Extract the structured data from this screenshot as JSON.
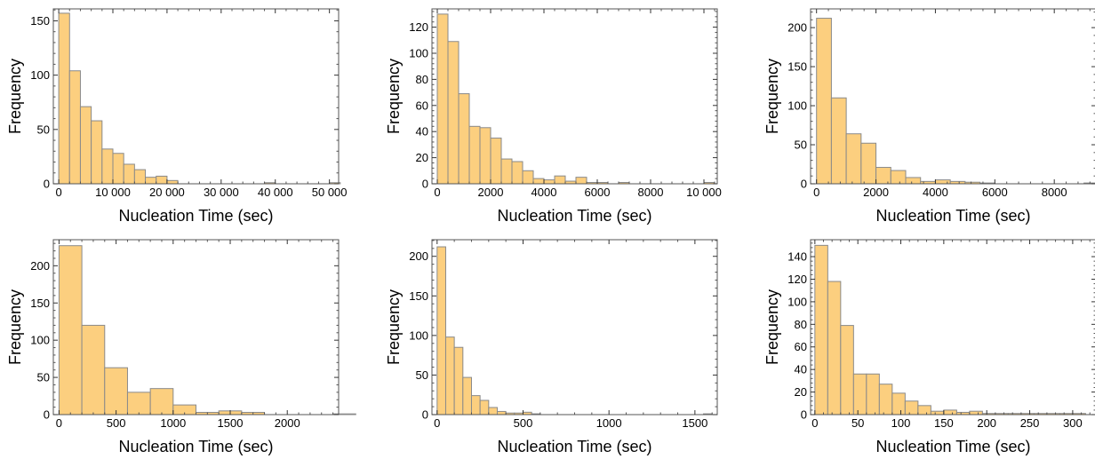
{
  "colors": {
    "bar_fill": "#fccf7f",
    "bar_stroke": "#8a8a8a",
    "frame": "#555555"
  },
  "chart_data": [
    {
      "type": "bar",
      "xlabel": "Nucleation Time (sec)",
      "ylabel": "Frequency",
      "xlim": [
        -1000,
        51700
      ],
      "ylim": [
        0,
        161
      ],
      "bin_start": 0,
      "bin_width": 2000,
      "values": [
        157,
        104,
        71,
        58,
        32,
        28,
        18,
        13,
        6,
        7,
        3,
        0,
        0,
        0,
        0,
        0,
        0,
        0,
        0,
        1,
        0,
        0,
        0,
        0,
        0,
        1
      ],
      "xticks": [
        0,
        10000,
        20000,
        30000,
        40000,
        50000
      ],
      "xtick_labels": [
        "0",
        "10 000",
        "20 000",
        "30 000",
        "40 000",
        "50 000"
      ],
      "yticks": [
        0,
        50,
        100,
        150
      ],
      "ytick_labels": [
        "0",
        "50",
        "100",
        "150"
      ]
    },
    {
      "type": "bar",
      "xlabel": "Nucleation Time (sec)",
      "ylabel": "Frequency",
      "xlim": [
        -200,
        10500
      ],
      "ylim": [
        0,
        134
      ],
      "bin_start": 0,
      "bin_width": 400,
      "values": [
        130,
        109,
        69,
        44,
        43,
        35,
        19,
        17,
        10,
        4,
        3,
        6,
        2,
        5,
        1,
        1,
        0,
        1,
        0,
        0,
        0,
        0,
        0,
        0,
        0,
        1
      ],
      "xticks": [
        0,
        2000,
        4000,
        6000,
        8000,
        10000
      ],
      "xtick_labels": [
        "0",
        "2000",
        "4000",
        "6000",
        "8000",
        "10 000"
      ],
      "yticks": [
        0,
        20,
        40,
        60,
        80,
        100,
        120
      ],
      "ytick_labels": [
        "0",
        "20",
        "40",
        "60",
        "80",
        "100",
        "120"
      ]
    },
    {
      "type": "bar",
      "xlabel": "Nucleation Time (sec)",
      "ylabel": "Frequency",
      "xlim": [
        -200,
        9400
      ],
      "ylim": [
        0,
        224
      ],
      "bin_start": 0,
      "bin_width": 500,
      "values": [
        212,
        110,
        64,
        52,
        21,
        17,
        8,
        3,
        5,
        3,
        2,
        1,
        0,
        0,
        0,
        0,
        0,
        0,
        1
      ],
      "xticks": [
        0,
        2000,
        4000,
        6000,
        8000
      ],
      "xtick_labels": [
        "0",
        "2000",
        "4000",
        "6000",
        "8000"
      ],
      "yticks": [
        0,
        50,
        100,
        150,
        200
      ],
      "ytick_labels": [
        "0",
        "50",
        "100",
        "150",
        "200"
      ]
    },
    {
      "type": "bar",
      "xlabel": "Nucleation Time (sec)",
      "ylabel": "Frequency",
      "xlim": [
        -50,
        2450
      ],
      "ylim": [
        0,
        235
      ],
      "bin_start": 0,
      "bin_width": 200,
      "values": [
        227,
        120,
        63,
        30,
        35,
        13,
        3,
        5,
        3,
        0,
        0,
        0,
        1
      ],
      "xticks": [
        0,
        500,
        1000,
        1500,
        2000
      ],
      "xtick_labels": [
        "0",
        "500",
        "1000",
        "1500",
        "2000"
      ],
      "yticks": [
        0,
        50,
        100,
        150,
        200
      ],
      "ytick_labels": [
        "0",
        "50",
        "100",
        "150",
        "200"
      ]
    },
    {
      "type": "bar",
      "xlabel": "Nucleation Time (sec)",
      "ylabel": "Frequency",
      "xlim": [
        -30,
        1630
      ],
      "ylim": [
        0,
        221
      ],
      "bin_start": 0,
      "bin_width": 50,
      "values": [
        212,
        98,
        85,
        47,
        24,
        18,
        9,
        4,
        2,
        2,
        3,
        1,
        0,
        0,
        0,
        0,
        0,
        0,
        0,
        0,
        0,
        0,
        0,
        0,
        0,
        0,
        0,
        0,
        0,
        0,
        0,
        1
      ],
      "xticks": [
        0,
        500,
        1000,
        1500
      ],
      "xtick_labels": [
        "0",
        "500",
        "1000",
        "1500"
      ],
      "yticks": [
        0,
        50,
        100,
        150,
        200
      ],
      "ytick_labels": [
        "0",
        "50",
        "100",
        "150",
        "200"
      ]
    },
    {
      "type": "bar",
      "xlabel": "Nucleation Time (sec)",
      "ylabel": "Frequency",
      "xlim": [
        -5,
        327
      ],
      "ylim": [
        0,
        155
      ],
      "bin_start": 0,
      "bin_width": 15,
      "values": [
        150,
        118,
        79,
        36,
        36,
        27,
        19,
        12,
        8,
        3,
        4,
        2,
        3,
        1,
        1,
        1,
        1,
        1,
        1,
        1,
        1
      ],
      "xticks": [
        0,
        50,
        100,
        150,
        200,
        250,
        300
      ],
      "xtick_labels": [
        "0",
        "50",
        "100",
        "150",
        "200",
        "250",
        "300"
      ],
      "yticks": [
        0,
        20,
        40,
        60,
        80,
        100,
        120,
        140
      ],
      "ytick_labels": [
        "0",
        "20",
        "40",
        "60",
        "80",
        "100",
        "120",
        "140"
      ]
    }
  ]
}
